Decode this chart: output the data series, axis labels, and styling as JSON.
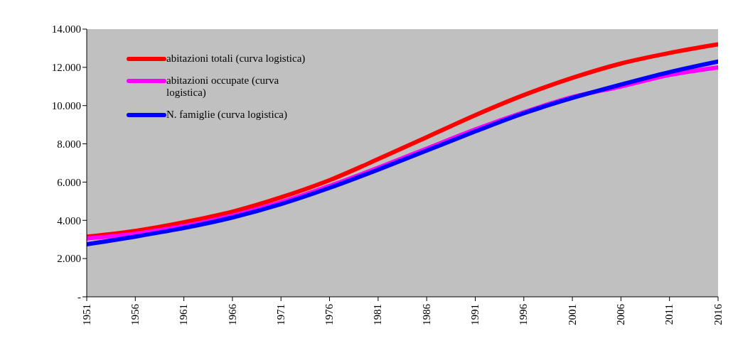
{
  "chart_data": {
    "type": "line",
    "x": [
      1951,
      1956,
      1961,
      1966,
      1971,
      1976,
      1981,
      1986,
      1991,
      1996,
      2001,
      2006,
      2011,
      2016
    ],
    "series": [
      {
        "name": "abitazioni totali (curva logistica)",
        "color": "#ff0000",
        "values": [
          3150,
          3450,
          3900,
          4450,
          5200,
          6100,
          7200,
          8350,
          9500,
          10550,
          11450,
          12200,
          12750,
          13200
        ]
      },
      {
        "name": "abitazioni occupate (curva logistica)",
        "color": "#ff00ff",
        "values": [
          3050,
          3300,
          3700,
          4250,
          4950,
          5800,
          6750,
          7750,
          8750,
          9650,
          10450,
          11000,
          11600,
          12000
        ]
      },
      {
        "name": "N. famiglie (curva logistica)",
        "color": "#0000ff",
        "values": [
          2750,
          3150,
          3600,
          4150,
          4850,
          5700,
          6650,
          7650,
          8650,
          9600,
          10400,
          11100,
          11750,
          12300
        ]
      }
    ],
    "xlim": [
      1951,
      2016
    ],
    "xticks": [
      1951,
      1956,
      1961,
      1966,
      1971,
      1976,
      1981,
      1986,
      1991,
      1996,
      2001,
      2006,
      2011,
      2016
    ],
    "ylim": [
      0,
      14000
    ],
    "yticks": [
      {
        "value": 0,
        "label": "-"
      },
      {
        "value": 2000,
        "label": "2.000"
      },
      {
        "value": 4000,
        "label": "4.000"
      },
      {
        "value": 6000,
        "label": "6.000"
      },
      {
        "value": 8000,
        "label": "8.000"
      },
      {
        "value": 10000,
        "label": "10.000"
      },
      {
        "value": 12000,
        "label": "12.000"
      },
      {
        "value": 14000,
        "label": "14.000"
      }
    ],
    "grid": false,
    "legend": "top left",
    "marker": "none",
    "line_style": "solid"
  }
}
